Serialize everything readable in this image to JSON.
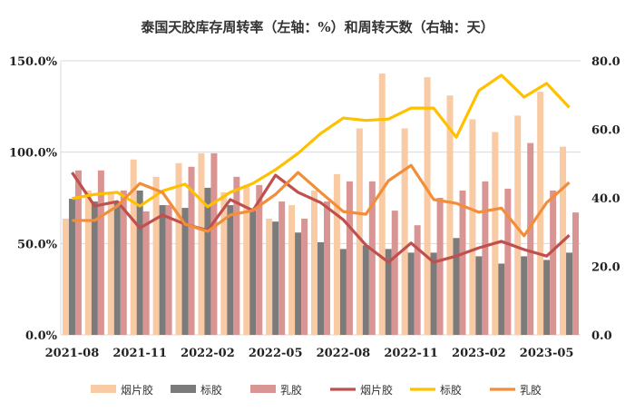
{
  "chart_data": {
    "type": "bar+line",
    "title": "泰国天胶库存周转率（左轴：%）和周转天数（右轴：天）",
    "x": [
      "2021-08",
      "2021-09",
      "2021-10",
      "2021-11",
      "2021-12",
      "2022-01",
      "2022-02",
      "2022-03",
      "2022-04",
      "2022-05",
      "2022-06",
      "2022-07",
      "2022-08",
      "2022-09",
      "2022-10",
      "2022-11",
      "2022-12",
      "2023-01",
      "2023-02",
      "2023-03",
      "2023-04",
      "2023-05",
      "2023-06"
    ],
    "xtick_labels": [
      "2021-08",
      "2021-11",
      "2022-02",
      "2022-05",
      "2022-08",
      "2022-11",
      "2023-02",
      "2023-05"
    ],
    "left_axis": {
      "ylim": [
        0,
        150
      ],
      "ticks": [
        "0.0%",
        "50.0%",
        "100.0%",
        "150.0%"
      ],
      "tick_values": [
        0,
        50,
        100,
        150
      ]
    },
    "right_axis": {
      "ylim": [
        0,
        80
      ],
      "ticks": [
        "0.0",
        "20.0",
        "40.0",
        "60.0",
        "80.0"
      ],
      "tick_values": [
        0,
        20,
        40,
        60,
        80
      ]
    },
    "bars": [
      {
        "name": "烟片胶",
        "color": "#f8cba4",
        "values": [
          63.6,
          79,
          78,
          96,
          86.5,
          94,
          99.4,
          78,
          82,
          63.6,
          71,
          79,
          88,
          113,
          143,
          113,
          141,
          131,
          118,
          111,
          120,
          133,
          103
        ]
      },
      {
        "name": "标胶",
        "color": "#7b7b7b",
        "values": [
          74.5,
          73,
          73,
          79,
          71,
          69.5,
          80.5,
          71,
          68,
          62,
          56,
          50.7,
          47,
          49,
          47,
          45,
          45,
          53,
          43,
          39,
          43,
          41,
          45
        ]
      },
      {
        "name": "乳胶",
        "color": "#d99594",
        "values": [
          90,
          90,
          79,
          67.6,
          71,
          92,
          99.4,
          86.5,
          82,
          73,
          63.6,
          73,
          84,
          84,
          68,
          60,
          75,
          79,
          84,
          80,
          105,
          79,
          67
        ]
      }
    ],
    "lines": [
      {
        "name": "烟片胶",
        "color": "#c0504d",
        "values": [
          47.4,
          37.6,
          38.9,
          31.2,
          35,
          32.3,
          30.5,
          39.5,
          36.3,
          46.6,
          41.6,
          38.6,
          33.6,
          26.2,
          21.2,
          26.8,
          21.2,
          23,
          25.4,
          27.3,
          24.9,
          23,
          29.1
        ]
      },
      {
        "name": "标胶",
        "color": "#ffc000",
        "values": [
          39.8,
          41,
          41.6,
          37.6,
          42,
          44,
          37.4,
          41.6,
          44.2,
          48.2,
          53,
          58.8,
          63.3,
          62.6,
          63,
          66.2,
          66.2,
          57.7,
          71.3,
          75.8,
          69.4,
          73.4,
          66.4
        ]
      },
      {
        "name": "乳胶",
        "color": "#f28e3a",
        "values": [
          33.4,
          33.4,
          37.6,
          44.2,
          41.6,
          32.3,
          30.2,
          35,
          36.3,
          41,
          47.4,
          41.6,
          36,
          35.2,
          45,
          49.5,
          39.5,
          38.4,
          35.8,
          37,
          28.9,
          38.6,
          44.5
        ]
      }
    ],
    "legend_position": "bottom",
    "grid": true
  }
}
